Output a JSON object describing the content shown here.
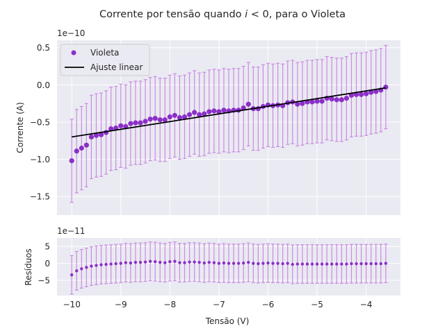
{
  "chart_data": [
    {
      "type": "scatter",
      "title": "Corrente por tensão quando i < 0, para o Violeta",
      "ylabel": "Corrente (A)",
      "y_offset_label": "1e−10",
      "ylim": [
        -1.75,
        0.6
      ],
      "yticks": [
        0.5,
        0.0,
        -0.5,
        -1.0,
        -1.5
      ],
      "ytick_labels": [
        "0.5",
        "0.0",
        "−0.5",
        "−1.0",
        "−1.5"
      ],
      "xlim": [
        -10.3,
        -3.3
      ],
      "xticks": [
        -10,
        -9,
        -8,
        -7,
        -6,
        -5,
        -4
      ],
      "grid": true,
      "legend_position": "top-left",
      "marker_color": "#8b2fc9",
      "errorbar_color": "#c98be0",
      "fit_color": "#000000",
      "x": [
        -10.0,
        -9.9,
        -9.8,
        -9.7,
        -9.6,
        -9.5,
        -9.4,
        -9.3,
        -9.2,
        -9.1,
        -9.0,
        -8.9,
        -8.8,
        -8.7,
        -8.6,
        -8.5,
        -8.4,
        -8.3,
        -8.2,
        -8.1,
        -8.0,
        -7.9,
        -7.8,
        -7.7,
        -7.6,
        -7.5,
        -7.4,
        -7.3,
        -7.2,
        -7.1,
        -7.0,
        -6.9,
        -6.8,
        -6.7,
        -6.6,
        -6.5,
        -6.4,
        -6.3,
        -6.2,
        -6.1,
        -6.0,
        -5.9,
        -5.8,
        -5.7,
        -5.6,
        -5.5,
        -5.4,
        -5.3,
        -5.2,
        -5.1,
        -5.0,
        -4.9,
        -4.8,
        -4.7,
        -4.6,
        -4.5,
        -4.4,
        -4.3,
        -4.2,
        -4.1,
        -4.0,
        -3.9,
        -3.8,
        -3.7,
        -3.6
      ],
      "series": [
        {
          "name": "Violeta",
          "values": [
            -1.02,
            -0.89,
            -0.85,
            -0.81,
            -0.7,
            -0.68,
            -0.67,
            -0.64,
            -0.59,
            -0.58,
            -0.55,
            -0.56,
            -0.52,
            -0.51,
            -0.51,
            -0.49,
            -0.46,
            -0.45,
            -0.47,
            -0.47,
            -0.43,
            -0.41,
            -0.44,
            -0.43,
            -0.4,
            -0.37,
            -0.4,
            -0.39,
            -0.36,
            -0.35,
            -0.36,
            -0.34,
            -0.35,
            -0.34,
            -0.34,
            -0.31,
            -0.26,
            -0.32,
            -0.32,
            -0.29,
            -0.27,
            -0.28,
            -0.27,
            -0.28,
            -0.24,
            -0.23,
            -0.26,
            -0.25,
            -0.23,
            -0.23,
            -0.22,
            -0.22,
            -0.18,
            -0.19,
            -0.2,
            -0.2,
            -0.18,
            -0.14,
            -0.13,
            -0.13,
            -0.12,
            -0.1,
            -0.09,
            -0.07,
            -0.03
          ],
          "errors": [
            0.56,
            0.56,
            0.56,
            0.56,
            0.56,
            0.56,
            0.56,
            0.56,
            0.56,
            0.56,
            0.56,
            0.56,
            0.56,
            0.56,
            0.56,
            0.56,
            0.56,
            0.56,
            0.56,
            0.56,
            0.56,
            0.56,
            0.56,
            0.56,
            0.56,
            0.56,
            0.56,
            0.56,
            0.56,
            0.56,
            0.56,
            0.56,
            0.56,
            0.56,
            0.56,
            0.56,
            0.56,
            0.56,
            0.56,
            0.56,
            0.56,
            0.56,
            0.56,
            0.56,
            0.56,
            0.56,
            0.56,
            0.56,
            0.56,
            0.56,
            0.56,
            0.56,
            0.56,
            0.56,
            0.56,
            0.56,
            0.56,
            0.56,
            0.56,
            0.56,
            0.56,
            0.56,
            0.56,
            0.56,
            0.56
          ]
        },
        {
          "name": "Ajuste linear",
          "line": [
            [
              -10.0,
              -0.7
            ],
            [
              -3.6,
              -0.04
            ]
          ]
        }
      ]
    },
    {
      "type": "scatter",
      "ylabel": "Resíduos",
      "xlabel": "Tensão (V)",
      "y_offset_label": "1e−11",
      "ylim": [
        -9.5,
        7.5
      ],
      "yticks": [
        5,
        0,
        -5
      ],
      "ytick_labels": [
        "5",
        "0",
        "−5"
      ],
      "xlim": [
        -10.3,
        -3.3
      ],
      "xticks": [
        -10,
        -9,
        -8,
        -7,
        -6,
        -5,
        -4
      ],
      "xtick_labels": [
        "−10",
        "−9",
        "−8",
        "−7",
        "−6",
        "−5",
        "−4"
      ],
      "grid": true,
      "x": [
        -10.0,
        -9.9,
        -9.8,
        -9.7,
        -9.6,
        -9.5,
        -9.4,
        -9.3,
        -9.2,
        -9.1,
        -9.0,
        -8.9,
        -8.8,
        -8.7,
        -8.6,
        -8.5,
        -8.4,
        -8.3,
        -8.2,
        -8.1,
        -8.0,
        -7.9,
        -7.8,
        -7.7,
        -7.6,
        -7.5,
        -7.4,
        -7.3,
        -7.2,
        -7.1,
        -7.0,
        -6.9,
        -6.8,
        -6.7,
        -6.6,
        -6.5,
        -6.4,
        -6.3,
        -6.2,
        -6.1,
        -6.0,
        -5.9,
        -5.8,
        -5.7,
        -5.6,
        -5.5,
        -5.4,
        -5.3,
        -5.2,
        -5.1,
        -5.0,
        -4.9,
        -4.8,
        -4.7,
        -4.6,
        -4.5,
        -4.4,
        -4.3,
        -4.2,
        -4.1,
        -4.0,
        -3.9,
        -3.8,
        -3.7,
        -3.6
      ],
      "series": [
        {
          "values": [
            -3.4,
            -2.2,
            -1.6,
            -1.2,
            -0.8,
            -0.6,
            -0.4,
            -0.3,
            -0.2,
            -0.1,
            0.0,
            0.2,
            0.1,
            0.3,
            0.3,
            0.4,
            0.6,
            0.5,
            0.3,
            0.2,
            0.5,
            0.6,
            0.2,
            0.2,
            0.4,
            0.4,
            0.3,
            0.1,
            0.3,
            0.2,
            0.0,
            0.1,
            0.0,
            0.0,
            0.0,
            0.1,
            0.3,
            0.0,
            -0.1,
            0.0,
            0.1,
            0.0,
            0.0,
            -0.1,
            0.0,
            -0.3,
            -0.2,
            -0.2,
            -0.2,
            -0.2,
            -0.2,
            -0.2,
            -0.2,
            -0.2,
            -0.2,
            -0.2,
            -0.2,
            -0.1,
            -0.1,
            -0.1,
            -0.1,
            -0.1,
            -0.1,
            -0.1,
            0.0
          ],
          "errors": [
            5.7,
            5.7,
            5.7,
            5.7,
            5.7,
            5.7,
            5.7,
            5.7,
            5.7,
            5.7,
            5.7,
            5.7,
            5.7,
            5.7,
            5.7,
            5.7,
            5.7,
            5.7,
            5.7,
            5.7,
            5.7,
            5.7,
            5.7,
            5.7,
            5.7,
            5.7,
            5.7,
            5.7,
            5.7,
            5.7,
            5.7,
            5.7,
            5.7,
            5.7,
            5.7,
            5.7,
            5.7,
            5.7,
            5.7,
            5.7,
            5.7,
            5.7,
            5.7,
            5.7,
            5.7,
            5.7,
            5.7,
            5.7,
            5.7,
            5.7,
            5.7,
            5.7,
            5.7,
            5.7,
            5.7,
            5.7,
            5.7,
            5.7,
            5.7,
            5.7,
            5.7,
            5.7,
            5.7,
            5.7,
            5.7
          ]
        }
      ]
    }
  ]
}
